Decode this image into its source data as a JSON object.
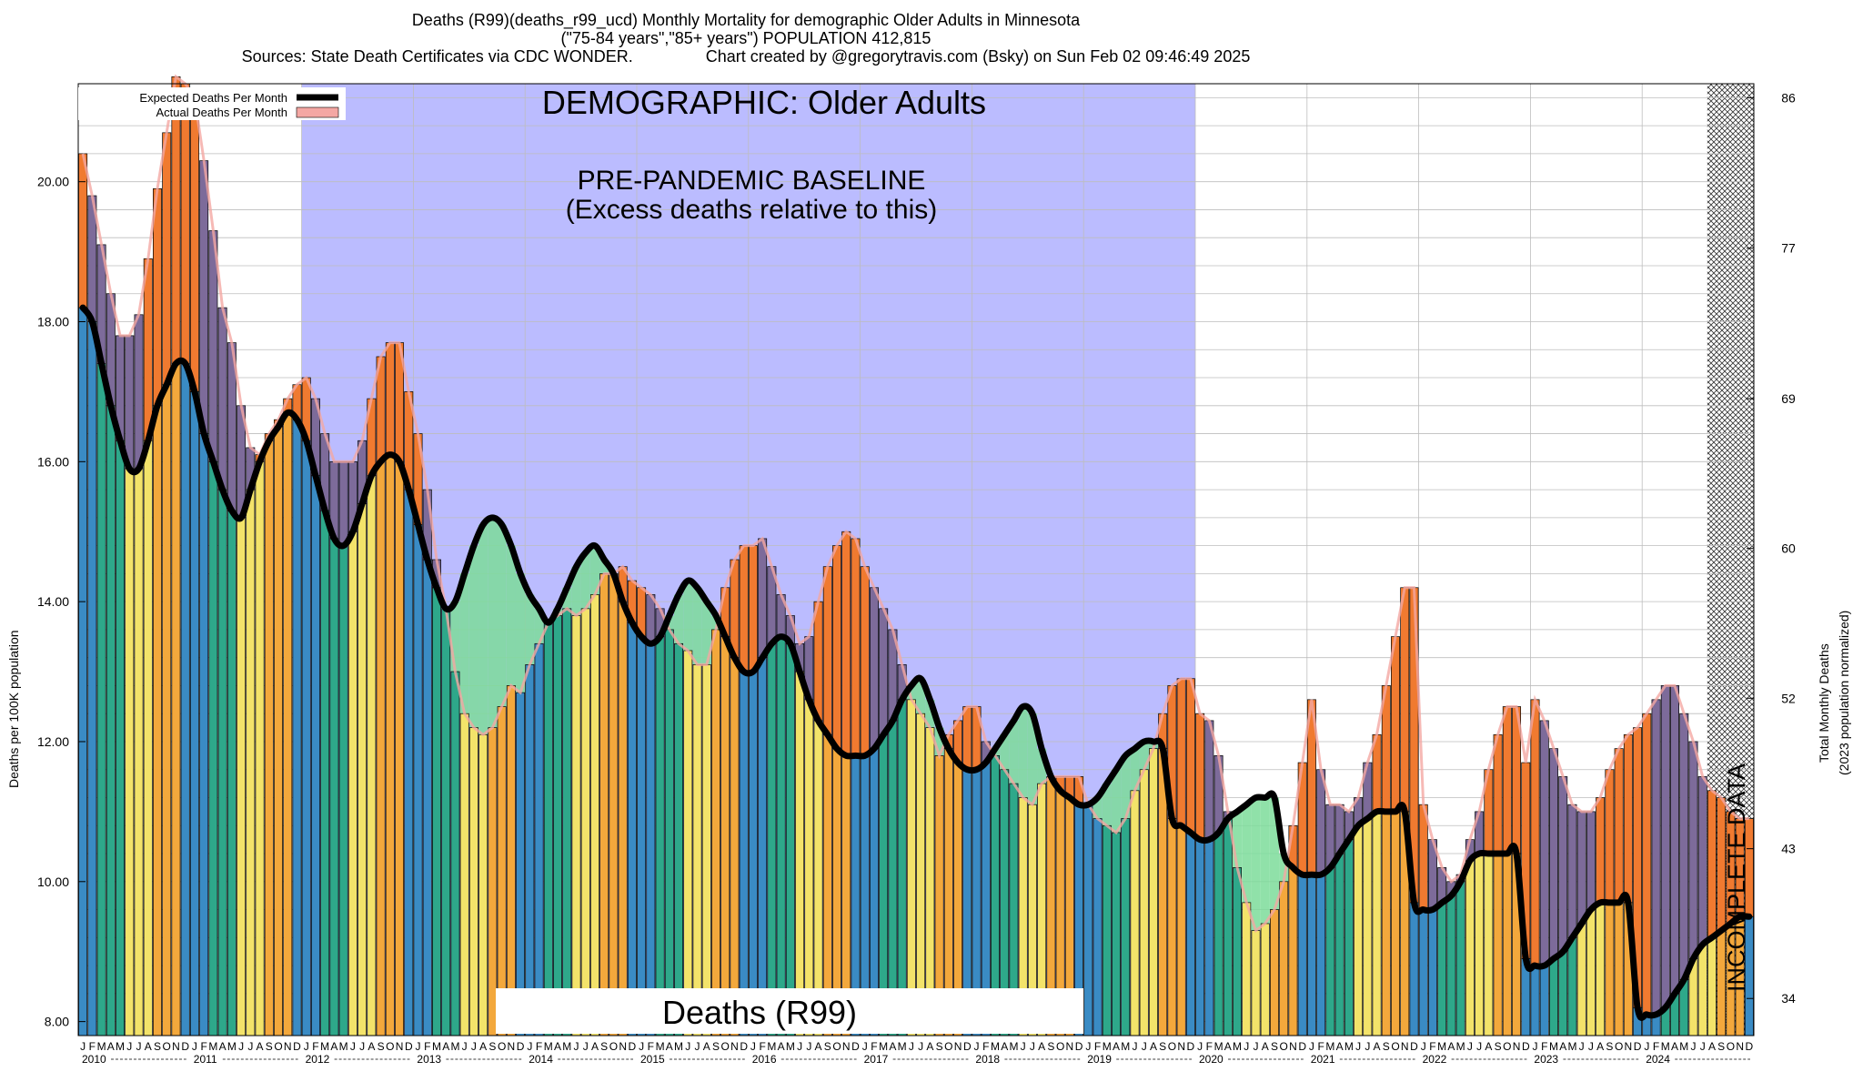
{
  "header": {
    "line1": "Deaths (R99)(deaths_r99_ucd) Monthly Mortality for demographic Older Adults in Minnesota",
    "line2": "(\"75-84 years\",\"85+ years\") POPULATION 412,815",
    "line3": "Sources: State Death Certificates via CDC WONDER.                Chart created by @gregorytravis.com (Bsky) on Sun Feb 02 09:46:49 2025"
  },
  "legend": {
    "expected": "Expected Deaths Per Month",
    "actual": "Actual Deaths Per Month"
  },
  "annotations": {
    "demographic": "DEMOGRAPHIC: Older Adults",
    "baseline_line1": "PRE-PANDEMIC BASELINE",
    "baseline_line2": "(Excess deaths relative to this)",
    "cause": "Deaths (R99)",
    "incomplete": "INCOMPLETE DATA"
  },
  "chart_data": {
    "type": "bar",
    "ylabel": "Deaths per 100K population",
    "y2label_line1": "Total Monthly Deaths",
    "y2label_line2": "(2023 population normalized)",
    "ylim": [
      7.8,
      21.4
    ],
    "yticks": [
      "8.00",
      "10.00",
      "12.00",
      "14.00",
      "16.00",
      "18.00",
      "20.00"
    ],
    "y2ticks": [
      "34",
      "43",
      "52",
      "60",
      "69",
      "77",
      "86"
    ],
    "y2tick_values": [
      8.33,
      10.47,
      12.62,
      14.76,
      16.9,
      19.05,
      21.2
    ],
    "month_letters": [
      "J",
      "F",
      "M",
      "A",
      "M",
      "J",
      "J",
      "A",
      "S",
      "O",
      "N",
      "D"
    ],
    "years": [
      "2010",
      "2011",
      "2012",
      "2013",
      "2014",
      "2015",
      "2016",
      "2017",
      "2018",
      "2019",
      "2020",
      "2021",
      "2022",
      "2023",
      "2024"
    ],
    "baseline_period": [
      "2012-01",
      "2019-12"
    ],
    "incomplete_period": [
      "2024-08",
      "2024-12"
    ],
    "colors": {
      "winter": "#3a8bc4",
      "spring": "#2ea88a",
      "summer": "#f3e36a",
      "fall": "#f3a83c",
      "excess": "#f07a30",
      "mixed_excess": "#7d6b9a",
      "deficit": "#7ddc9a",
      "baseline_shade": "#bbbcff",
      "expected_line": "#000000",
      "actual_ribbon": "#f4a7a3"
    },
    "actual": [
      20.4,
      19.8,
      19.1,
      18.4,
      17.8,
      17.8,
      18.1,
      18.9,
      19.9,
      20.7,
      21.5,
      21.4,
      21.2,
      20.3,
      19.3,
      18.2,
      17.7,
      16.8,
      16.2,
      16.1,
      16.4,
      16.6,
      16.9,
      17.1,
      17.2,
      16.9,
      16.4,
      16.0,
      16.0,
      16.0,
      16.3,
      16.9,
      17.5,
      17.7,
      17.7,
      17.0,
      16.4,
      15.6,
      14.6,
      13.9,
      13.0,
      12.4,
      12.2,
      12.1,
      12.2,
      12.5,
      12.8,
      12.7,
      13.1,
      13.4,
      13.7,
      13.8,
      13.9,
      13.8,
      13.9,
      14.1,
      14.4,
      14.4,
      14.5,
      14.3,
      14.2,
      14.1,
      13.9,
      13.6,
      13.4,
      13.3,
      13.1,
      13.1,
      13.6,
      14.2,
      14.6,
      14.8,
      14.8,
      14.9,
      14.5,
      14.1,
      13.8,
      13.4,
      13.5,
      14.0,
      14.5,
      14.8,
      15.0,
      14.9,
      14.5,
      14.2,
      13.9,
      13.6,
      13.1,
      12.6,
      12.4,
      12.2,
      11.8,
      12.1,
      12.3,
      12.5,
      12.5,
      12.0,
      11.8,
      11.6,
      11.4,
      11.2,
      11.1,
      11.4,
      11.5,
      11.5,
      11.5,
      11.5,
      11.1,
      10.9,
      10.8,
      10.7,
      10.9,
      11.3,
      11.6,
      11.9,
      12.4,
      12.8,
      12.9,
      12.9,
      12.4,
      12.3,
      11.8,
      11.0,
      10.2,
      9.7,
      9.3,
      9.4,
      9.6,
      10.0,
      10.8,
      11.7,
      12.6,
      11.6,
      11.1,
      11.1,
      11.0,
      11.2,
      11.7,
      12.1,
      12.8,
      13.5,
      14.2,
      14.2,
      11.1,
      10.6,
      10.2,
      10.0,
      10.1,
      10.6,
      11.0,
      11.6,
      12.1,
      12.5,
      12.5,
      11.7,
      12.6,
      12.3,
      11.9,
      11.5,
      11.1,
      11.0,
      11.0,
      11.2,
      11.6,
      11.9,
      12.1,
      12.2,
      12.4,
      12.6,
      12.8,
      12.8,
      12.4,
      12.0,
      11.5,
      11.3,
      11.2,
      11.0,
      10.9,
      10.9
    ],
    "expected": [
      18.2,
      18.0,
      17.4,
      16.8,
      16.3,
      15.9,
      15.9,
      16.3,
      16.8,
      17.1,
      17.4,
      17.4,
      17.0,
      16.4,
      16.0,
      15.6,
      15.3,
      15.2,
      15.6,
      16.0,
      16.3,
      16.5,
      16.7,
      16.6,
      16.3,
      15.8,
      15.3,
      14.9,
      14.8,
      15.0,
      15.4,
      15.8,
      16.0,
      16.1,
      16.0,
      15.6,
      15.1,
      14.6,
      14.2,
      13.9,
      14.0,
      14.4,
      14.8,
      15.1,
      15.2,
      15.1,
      14.8,
      14.4,
      14.1,
      13.9,
      13.7,
      13.9,
      14.2,
      14.5,
      14.7,
      14.8,
      14.6,
      14.4,
      14.0,
      13.7,
      13.5,
      13.4,
      13.5,
      13.8,
      14.1,
      14.3,
      14.2,
      14.0,
      13.8,
      13.5,
      13.2,
      13.0,
      13.0,
      13.2,
      13.4,
      13.5,
      13.4,
      13.0,
      12.6,
      12.3,
      12.1,
      11.9,
      11.8,
      11.8,
      11.8,
      11.9,
      12.1,
      12.3,
      12.6,
      12.8,
      12.9,
      12.6,
      12.2,
      11.9,
      11.7,
      11.6,
      11.6,
      11.7,
      11.9,
      12.1,
      12.3,
      12.5,
      12.4,
      11.9,
      11.5,
      11.3,
      11.2,
      11.1,
      11.1,
      11.2,
      11.4,
      11.6,
      11.8,
      11.9,
      12.0,
      12.0,
      11.9,
      10.9,
      10.8,
      10.7,
      10.6,
      10.6,
      10.7,
      10.9,
      11.0,
      11.1,
      11.2,
      11.2,
      11.2,
      10.4,
      10.2,
      10.1,
      10.1,
      10.1,
      10.2,
      10.4,
      10.6,
      10.8,
      10.9,
      11.0,
      11.0,
      11.0,
      11.0,
      9.7,
      9.6,
      9.6,
      9.7,
      9.8,
      10.0,
      10.3,
      10.4,
      10.4,
      10.4,
      10.4,
      10.4,
      8.9,
      8.8,
      8.8,
      8.9,
      9.0,
      9.2,
      9.4,
      9.6,
      9.7,
      9.7,
      9.7,
      9.7,
      8.2,
      8.1,
      8.1,
      8.2,
      8.4,
      8.6,
      8.9,
      9.1,
      9.2,
      9.3,
      9.4,
      9.5,
      9.5
    ],
    "actual_values_unit": "deaths per 100K",
    "incomplete_months_shown": 5
  }
}
